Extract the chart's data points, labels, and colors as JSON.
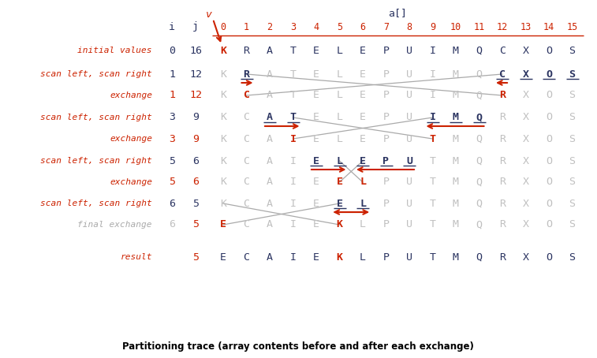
{
  "title": "Partitioning trace (array contents before and after each exchange)",
  "red_color": "#cc2200",
  "dark_color": "#2b3461",
  "gray_color": "#c0c0c0",
  "bg_color": "#ffffff",
  "rows": [
    {
      "label": "initial values",
      "i": "0",
      "j": "16",
      "i_red": false,
      "j_red": false,
      "label_gray": false,
      "arr": [
        "K",
        "R",
        "A",
        "T",
        "E",
        "L",
        "E",
        "P",
        "U",
        "I",
        "M",
        "Q",
        "C",
        "X",
        "O",
        "S"
      ],
      "bold": [],
      "red": [
        0
      ],
      "gray": []
    },
    {
      "label": "scan left, scan right",
      "i": "1",
      "j": "12",
      "i_red": false,
      "j_red": false,
      "label_gray": false,
      "arr": [
        "K",
        "R",
        "A",
        "T",
        "E",
        "L",
        "E",
        "P",
        "U",
        "I",
        "M",
        "Q",
        "C",
        "X",
        "O",
        "S"
      ],
      "bold": [
        1,
        12,
        13,
        14,
        15
      ],
      "red": [],
      "gray": [
        0,
        2,
        3,
        4,
        5,
        6,
        7,
        8,
        9,
        10,
        11
      ],
      "scan_i": 1,
      "scan_j": 12,
      "ul": [
        1,
        12,
        13,
        14,
        15
      ]
    },
    {
      "label": "exchange",
      "i": "1",
      "j": "12",
      "i_red": true,
      "j_red": true,
      "label_gray": false,
      "arr": [
        "K",
        "C",
        "A",
        "T",
        "E",
        "L",
        "E",
        "P",
        "U",
        "I",
        "M",
        "Q",
        "R",
        "X",
        "O",
        "S"
      ],
      "bold": [],
      "red": [
        1,
        12
      ],
      "gray": [
        0,
        2,
        3,
        4,
        5,
        6,
        7,
        8,
        9,
        10,
        11,
        13,
        14,
        15
      ],
      "cross_from_prev": [
        1,
        12
      ]
    },
    {
      "label": "scan left, scan right",
      "i": "3",
      "j": "9",
      "i_red": false,
      "j_red": false,
      "label_gray": false,
      "arr": [
        "K",
        "C",
        "A",
        "T",
        "E",
        "L",
        "E",
        "P",
        "U",
        "I",
        "M",
        "Q",
        "R",
        "X",
        "O",
        "S"
      ],
      "bold": [
        2,
        3,
        9,
        10,
        11
      ],
      "red": [],
      "gray": [
        0,
        1,
        4,
        5,
        6,
        7,
        8,
        12,
        13,
        14,
        15
      ],
      "scan_i": 2,
      "scan_j": 11,
      "ul": [
        2,
        3,
        9,
        10,
        11
      ]
    },
    {
      "label": "exchange",
      "i": "3",
      "j": "9",
      "i_red": true,
      "j_red": true,
      "label_gray": false,
      "arr": [
        "K",
        "C",
        "A",
        "I",
        "E",
        "L",
        "E",
        "P",
        "U",
        "T",
        "M",
        "Q",
        "R",
        "X",
        "O",
        "S"
      ],
      "bold": [],
      "red": [
        3,
        9
      ],
      "gray": [
        0,
        1,
        2,
        4,
        5,
        6,
        7,
        8,
        10,
        11,
        12,
        13,
        14,
        15
      ],
      "cross_from_prev": [
        3,
        9
      ]
    },
    {
      "label": "scan left, scan right",
      "i": "5",
      "j": "6",
      "i_red": false,
      "j_red": false,
      "label_gray": false,
      "arr": [
        "K",
        "C",
        "A",
        "I",
        "E",
        "L",
        "E",
        "P",
        "U",
        "T",
        "M",
        "Q",
        "R",
        "X",
        "O",
        "S"
      ],
      "bold": [
        4,
        5,
        6,
        7,
        8
      ],
      "red": [],
      "gray": [
        0,
        1,
        2,
        3,
        9,
        10,
        11,
        12,
        13,
        14,
        15
      ],
      "scan_i": 4,
      "scan_j": 8,
      "ul": [
        4,
        5,
        6,
        7,
        8
      ]
    },
    {
      "label": "exchange",
      "i": "5",
      "j": "6",
      "i_red": true,
      "j_red": true,
      "label_gray": false,
      "arr": [
        "K",
        "C",
        "A",
        "I",
        "E",
        "E",
        "L",
        "P",
        "U",
        "T",
        "M",
        "Q",
        "R",
        "X",
        "O",
        "S"
      ],
      "bold": [],
      "red": [
        5,
        6
      ],
      "gray": [
        0,
        1,
        2,
        3,
        4,
        7,
        8,
        9,
        10,
        11,
        12,
        13,
        14,
        15
      ],
      "cross_from_prev": [
        5,
        6
      ]
    },
    {
      "label": "scan left, scan right",
      "i": "6",
      "j": "5",
      "i_red": false,
      "j_red": false,
      "label_gray": false,
      "arr": [
        "K",
        "C",
        "A",
        "I",
        "E",
        "E",
        "L",
        "P",
        "U",
        "T",
        "M",
        "Q",
        "R",
        "X",
        "O",
        "S"
      ],
      "bold": [
        5,
        6
      ],
      "red": [],
      "gray": [
        0,
        1,
        2,
        3,
        4,
        7,
        8,
        9,
        10,
        11,
        12,
        13,
        14,
        15
      ],
      "scan_i": 5,
      "scan_j": 6,
      "ul": [
        5,
        6
      ]
    },
    {
      "label": "final exchange",
      "i": "6",
      "j": "5",
      "i_red": false,
      "j_red": true,
      "label_gray": true,
      "arr": [
        "E",
        "C",
        "A",
        "I",
        "E",
        "K",
        "L",
        "P",
        "U",
        "T",
        "M",
        "Q",
        "R",
        "X",
        "O",
        "S"
      ],
      "bold": [],
      "red": [
        0,
        5
      ],
      "gray": [
        1,
        2,
        3,
        4,
        6,
        7,
        8,
        9,
        10,
        11,
        12,
        13,
        14,
        15
      ],
      "cross_from_prev": [
        0,
        5
      ]
    },
    {
      "label": "result",
      "i": "",
      "j": "5",
      "i_red": false,
      "j_red": true,
      "label_gray": false,
      "arr": [
        "E",
        "C",
        "A",
        "I",
        "E",
        "K",
        "L",
        "P",
        "U",
        "T",
        "M",
        "Q",
        "R",
        "X",
        "O",
        "S"
      ],
      "bold": [],
      "red": [
        5
      ],
      "gray": []
    }
  ]
}
